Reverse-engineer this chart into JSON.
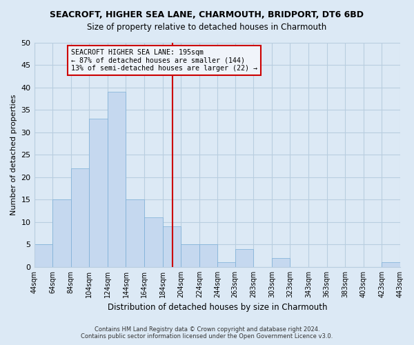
{
  "title": "SEACROFT, HIGHER SEA LANE, CHARMOUTH, BRIDPORT, DT6 6BD",
  "subtitle": "Size of property relative to detached houses in Charmouth",
  "xlabel": "Distribution of detached houses by size in Charmouth",
  "ylabel": "Number of detached properties",
  "bin_labels": [
    "44sqm",
    "64sqm",
    "84sqm",
    "104sqm",
    "124sqm",
    "144sqm",
    "164sqm",
    "184sqm",
    "204sqm",
    "224sqm",
    "244sqm",
    "263sqm",
    "283sqm",
    "303sqm",
    "323sqm",
    "343sqm",
    "363sqm",
    "383sqm",
    "403sqm",
    "423sqm",
    "443sqm"
  ],
  "bin_edges": [
    44,
    64,
    84,
    104,
    124,
    144,
    164,
    184,
    204,
    224,
    244,
    263,
    283,
    303,
    323,
    343,
    363,
    383,
    403,
    423,
    443
  ],
  "counts": [
    5,
    15,
    22,
    33,
    39,
    15,
    11,
    9,
    5,
    5,
    1,
    4,
    0,
    2,
    0,
    0,
    0,
    0,
    0,
    1
  ],
  "bar_color": "#c5d8ef",
  "bar_edge_color": "#7aaed6",
  "property_size": 195,
  "vline_color": "#cc0000",
  "annotation_line1": "SEACROFT HIGHER SEA LANE: 195sqm",
  "annotation_line2": "← 87% of detached houses are smaller (144)",
  "annotation_line3": "13% of semi-detached houses are larger (22) →",
  "annotation_box_edgecolor": "#cc0000",
  "annotation_box_facecolor": "#f0f4fa",
  "ylim": [
    0,
    50
  ],
  "yticks": [
    0,
    5,
    10,
    15,
    20,
    25,
    30,
    35,
    40,
    45,
    50
  ],
  "footer_line1": "Contains HM Land Registry data © Crown copyright and database right 2024.",
  "footer_line2": "Contains public sector information licensed under the Open Government Licence v3.0.",
  "background_color": "#dce9f5",
  "plot_bg_color": "#dce9f5",
  "grid_color": "#b8cee0"
}
